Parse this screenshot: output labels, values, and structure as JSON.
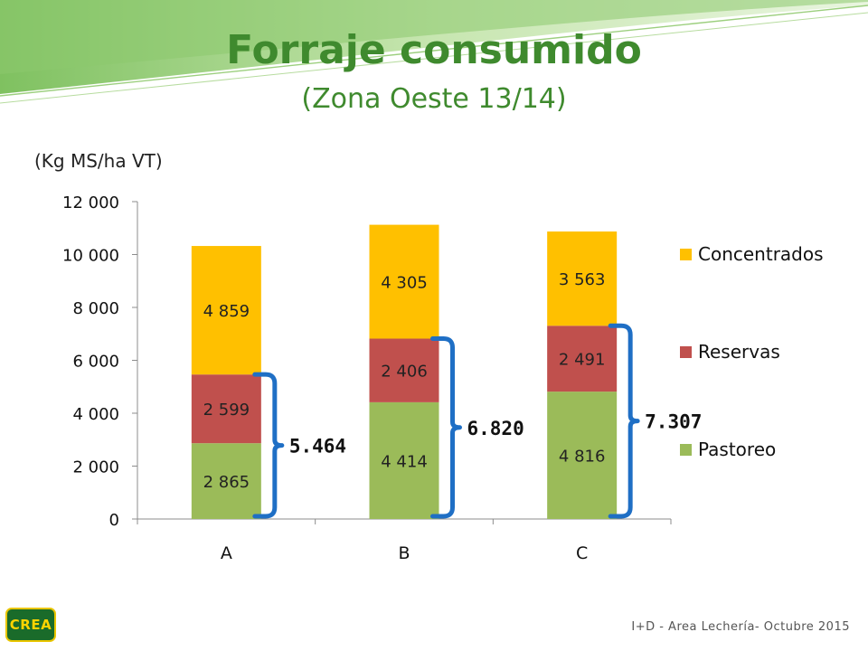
{
  "slide": {
    "title": "Forraje consumido",
    "subtitle": "(Zona Oeste 13/14)",
    "unit_label": "(Kg MS/ha VT)",
    "footer": "I+D - Area Lechería- Octubre 2015",
    "logo_text": "CREA"
  },
  "colors": {
    "title": "#3f8a2e",
    "Pastoreo": "#9bbb59",
    "Reservas": "#c0504d",
    "Concentrados": "#ffc000",
    "brace": "#1f6fc5"
  },
  "chart_data": {
    "type": "bar",
    "stacked": true,
    "categories": [
      "A",
      "B",
      "C"
    ],
    "series": [
      {
        "name": "Pastoreo",
        "values": [
          2865,
          4414,
          4816
        ],
        "labels": [
          "2 865",
          "4 414",
          "4 816"
        ]
      },
      {
        "name": "Reservas",
        "values": [
          2599,
          2406,
          2491
        ],
        "labels": [
          "2 599",
          "2 406",
          "2 491"
        ]
      },
      {
        "name": "Concentrados",
        "values": [
          4859,
          4305,
          3563
        ],
        "labels": [
          "4 859",
          "4 305",
          "3 563"
        ]
      }
    ],
    "legend_order": [
      "Concentrados",
      "Reservas",
      "Pastoreo"
    ],
    "legend_position": "right",
    "ylim": [
      0,
      12000
    ],
    "y_ticks": [
      0,
      2000,
      4000,
      6000,
      8000,
      10000,
      12000
    ],
    "y_tick_labels": [
      "0",
      "2 000",
      "4 000",
      "6 000",
      "8 000",
      "10 000",
      "12 000"
    ],
    "grid": false,
    "annotations": [
      {
        "category": "A",
        "from": 0,
        "to": 5464,
        "label": "5.464"
      },
      {
        "category": "B",
        "from": 0,
        "to": 6820,
        "label": "6.820"
      },
      {
        "category": "C",
        "from": 0,
        "to": 7307,
        "label": "7.307"
      }
    ]
  }
}
